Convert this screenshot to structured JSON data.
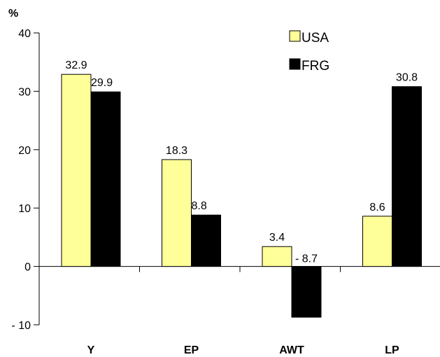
{
  "chart_data": {
    "type": "bar",
    "unit_label": "%",
    "categories": [
      "Y",
      "EP",
      "AWT",
      "LP"
    ],
    "series": [
      {
        "name": "USA",
        "values": [
          32.9,
          18.3,
          3.4,
          8.6
        ],
        "labels": [
          "32.9",
          "18.3",
          "3.4",
          "8.6"
        ],
        "color": "#FFFF99"
      },
      {
        "name": "FRG",
        "values": [
          29.9,
          8.8,
          -8.7,
          30.8
        ],
        "labels": [
          "29.9",
          "8.8",
          "- 8.7",
          "30.8"
        ],
        "color": "#000000"
      }
    ],
    "yticks": [
      -10,
      0,
      10,
      20,
      30,
      40
    ],
    "ytick_labels": [
      "- 10",
      "0",
      "10",
      "20",
      "30",
      "40"
    ],
    "ylim": [
      -10,
      40
    ],
    "grid": false,
    "legend_position": "top-right"
  }
}
